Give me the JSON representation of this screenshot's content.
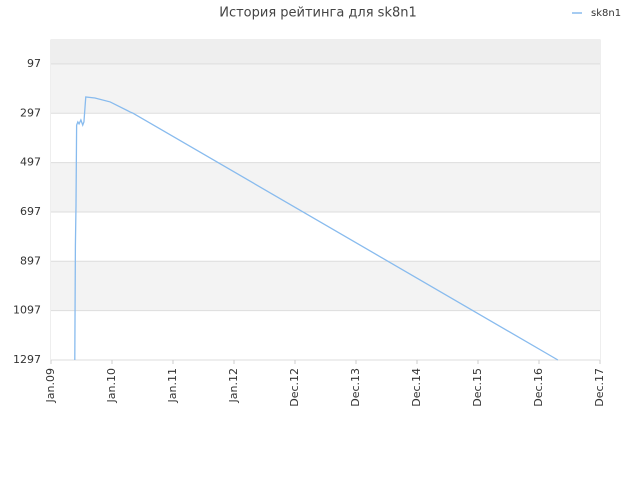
{
  "chart_data": {
    "type": "line",
    "title": "История рейтинга для sk8n1",
    "x": [
      0.39,
      0.4,
      0.41,
      0.42,
      0.44,
      0.46,
      0.49,
      0.52,
      0.54,
      0.57,
      0.72,
      0.97,
      1.3,
      1.34,
      8.31
    ],
    "series": [
      {
        "name": "sk8n1",
        "color": "#88bbee",
        "values": [
          1297,
          831,
          669,
          345,
          332,
          340,
          324,
          345,
          332,
          231,
          235,
          251,
          292,
          296,
          1297
        ]
      }
    ],
    "xlim": [
      0,
      9
    ],
    "xticks": [
      {
        "value": 0,
        "label": "Jan.09"
      },
      {
        "value": 1,
        "label": "Jan.10"
      },
      {
        "value": 2,
        "label": "Jan.11"
      },
      {
        "value": 3,
        "label": "Jan.12"
      },
      {
        "value": 4,
        "label": "Dec.12"
      },
      {
        "value": 5,
        "label": "Dec.13"
      },
      {
        "value": 6,
        "label": "Dec.14"
      },
      {
        "value": 7,
        "label": "Dec.15"
      },
      {
        "value": 8,
        "label": "Dec.16"
      },
      {
        "value": 9,
        "label": "Dec.17"
      }
    ],
    "ylim": [
      0,
      1297
    ],
    "yticks": [
      97,
      297,
      497,
      697,
      897,
      1097,
      1297
    ],
    "y_inverted": true,
    "grid": true,
    "legend": "top-right"
  }
}
